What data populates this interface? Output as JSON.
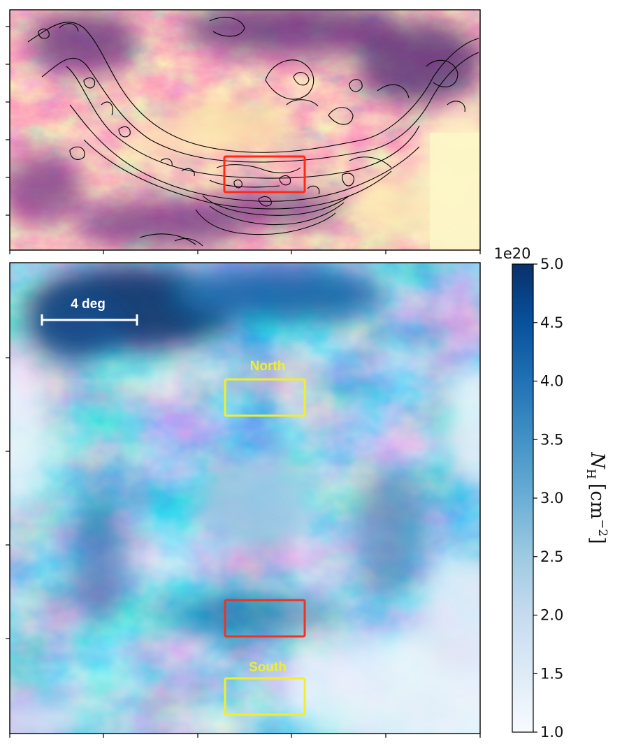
{
  "chart_data": [
    {
      "panel": "top",
      "type": "heatmap",
      "colormap": "magma",
      "contours": true,
      "title": "",
      "xlabel": "",
      "ylabel": "",
      "tick_labels_visible": false,
      "regions": [
        {
          "label": "",
          "color": "#ff2a12"
        }
      ]
    },
    {
      "panel": "bottom",
      "type": "heatmap",
      "colormap": "Blues",
      "title": "",
      "xlabel": "",
      "ylabel": "",
      "tick_labels_visible": false,
      "scale_bar": {
        "label": "4 deg",
        "length_deg": 4
      },
      "regions": [
        {
          "label": "North",
          "color": "#f2ee2a"
        },
        {
          "label": "",
          "color": "#ee3322"
        },
        {
          "label": "South",
          "color": "#f2ee2a"
        }
      ],
      "colorbar": {
        "label": "N_H [cm^-2]",
        "label_main": "N",
        "label_sub": "H",
        "label_unit": "[cm",
        "label_exp": "−2",
        "label_close": "]",
        "multiplier": "1e20",
        "range": [
          1.0,
          5.0
        ],
        "ticks": [
          1.0,
          1.5,
          2.0,
          2.5,
          3.0,
          3.5,
          4.0,
          4.5,
          5.0
        ],
        "tick_labels": [
          "1.0",
          "1.5",
          "2.0",
          "2.5",
          "3.0",
          "3.5",
          "4.0",
          "4.5",
          "5.0"
        ]
      }
    }
  ]
}
